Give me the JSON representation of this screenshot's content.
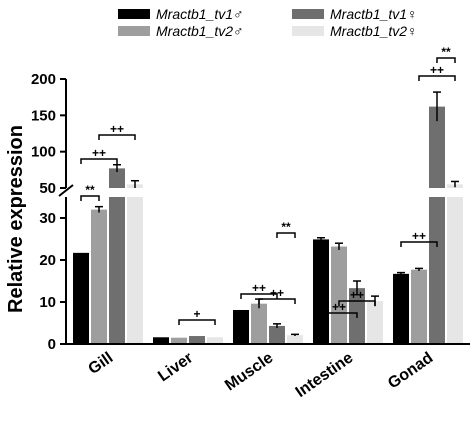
{
  "chart_data": {
    "type": "bar",
    "ylabel": "Relative expression",
    "categories": [
      "Gill",
      "Liver",
      "Muscle",
      "Intestine",
      "Gonad"
    ],
    "series": [
      {
        "name": "Mractb1_tv1♂",
        "color": "#000000",
        "values": [
          21.7,
          1.6,
          8.1,
          24.9,
          16.7
        ]
      },
      {
        "name": "Mractb1_tv2♂",
        "color": "#9e9e9e",
        "values": [
          32.0,
          1.5,
          9.6,
          23.2,
          17.7
        ]
      },
      {
        "name": "Mractb1_tv1♀",
        "color": "#6f6f6f",
        "values": [
          77,
          1.9,
          4.3,
          13.3,
          162
        ]
      },
      {
        "name": "Mractb1_tv2♀",
        "color": "#e6e6e6",
        "values": [
          55,
          1.6,
          2.1,
          10.2,
          55
        ]
      }
    ],
    "errors": [
      [
        0,
        0,
        0,
        0.4,
        0.3
      ],
      [
        0.7,
        0,
        1.1,
        0.8,
        0.3
      ],
      [
        5,
        0,
        0.5,
        1.7,
        20
      ],
      [
        5,
        0,
        0.2,
        1.2,
        4
      ]
    ],
    "y_axis": {
      "break": true,
      "lower_range": [
        0,
        35
      ],
      "upper_range": [
        50,
        200
      ],
      "lower_ticks": [
        "0",
        "10",
        "20",
        "30"
      ],
      "upper_ticks": [
        "50",
        "100",
        "150",
        "200"
      ]
    },
    "annotations": [
      {
        "category": "Gill",
        "from": "Mractb1_tv1♂",
        "to": "Mractb1_tv2♂",
        "label": "**"
      },
      {
        "category": "Gill",
        "from": "Mractb1_tv1♂",
        "to": "Mractb1_tv1♀",
        "label": "++"
      },
      {
        "category": "Gill",
        "from": "Mractb1_tv2♂",
        "to": "Mractb1_tv2♀",
        "label": "++"
      },
      {
        "category": "Liver",
        "from": "Mractb1_tv2♂",
        "to": "Mractb1_tv2♀",
        "label": "+"
      },
      {
        "category": "Muscle",
        "from": "Mractb1_tv1♂",
        "to": "Mractb1_tv1♀",
        "label": "++"
      },
      {
        "category": "Muscle",
        "from": "Mractb1_tv2♂",
        "to": "Mractb1_tv2♀",
        "label": "++"
      },
      {
        "category": "Muscle",
        "from": "Mractb1_tv1♀",
        "to": "Mractb1_tv2♀",
        "label": "**"
      },
      {
        "category": "Intestine",
        "from": "Mractb1_tv1♂",
        "to": "Mractb1_tv1♀",
        "label": "++"
      },
      {
        "category": "Intestine",
        "from": "Mractb1_tv2♂",
        "to": "Mractb1_tv2♀",
        "label": "++"
      },
      {
        "category": "Gonad",
        "from": "Mractb1_tv1♂",
        "to": "Mractb1_tv1♀",
        "label": "++"
      },
      {
        "category": "Gonad",
        "from": "Mractb1_tv2♂",
        "to": "Mractb1_tv2♀",
        "label": "++"
      },
      {
        "category": "Gonad",
        "from": "Mractb1_tv1♀",
        "to": "Mractb1_tv2♀",
        "label": "**"
      }
    ],
    "legend_position": "top"
  }
}
